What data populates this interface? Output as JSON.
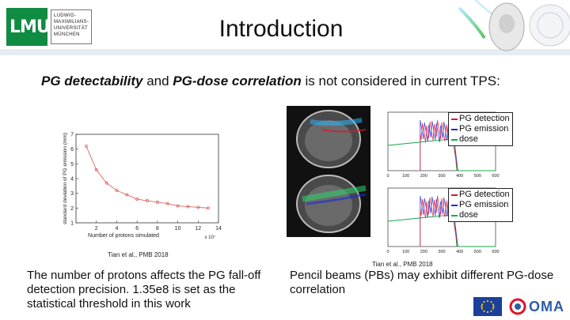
{
  "header": {
    "title": "Introduction",
    "logo": {
      "mark": "LMU",
      "lines": [
        "LUDWIG-",
        "MAXIMILIANS-",
        "UNIVERSITÄT",
        "MÜNCHEN"
      ]
    }
  },
  "lead": {
    "part1": "PG detectability",
    "part2": " and ",
    "part3": "PG-dose correlation",
    "part4": " is not considered in current TPS:"
  },
  "chart_data": {
    "type": "line",
    "title": "",
    "xlabel": "Number of protons simulated",
    "ylabel": "standard deviation of PG emission (mm)",
    "x_multiplier_label": "x 10⁷",
    "x": [
      1,
      2,
      3,
      4,
      5,
      6,
      7,
      8,
      9,
      10,
      11,
      12,
      13
    ],
    "values": [
      6.2,
      4.6,
      3.7,
      3.2,
      2.9,
      2.6,
      2.5,
      2.4,
      2.3,
      2.15,
      2.1,
      2.05,
      2.0
    ],
    "xticks": [
      "2",
      "4",
      "6",
      "8",
      "10",
      "12",
      "14"
    ],
    "yticks": [
      "1",
      "2",
      "3",
      "4",
      "5",
      "6",
      "7"
    ],
    "xlim": [
      0,
      14
    ],
    "ylim": [
      1,
      7
    ]
  },
  "citations": {
    "left": "Tian et al., PMB 2018",
    "right": "Tian et al., PMB 2018"
  },
  "dose_legend_top": [
    "PG detection",
    "PG emission",
    "dose"
  ],
  "dose_legend_bottom": [
    "PG detection",
    "PG emission",
    "dose"
  ],
  "dose_axis_ticks": [
    "0",
    "100",
    "200",
    "300",
    "400",
    "500",
    "600"
  ],
  "bottom_left_text": "The number of protons affects the PG fall-off detection precision. 1.35e8 is set as the statistical threshold in this work",
  "bottom_right_text": "Pencil beams (PBs) may exhibit different PG-dose correlation",
  "colors": {
    "accent_green": "#0f8b42",
    "pg_detection": "#e0142b",
    "pg_emission": "#1f2bd6",
    "dose": "#18a84a"
  },
  "footer_logos": {
    "oma": "OMA"
  }
}
